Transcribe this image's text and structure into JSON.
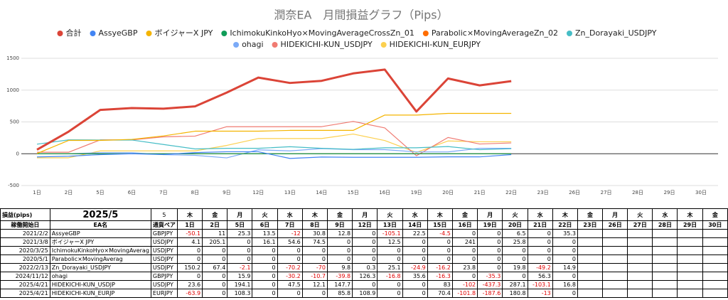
{
  "chart_data": {
    "type": "line",
    "title": "潤奈EA　月間損益グラフ（Pips）",
    "categories": [
      "1日",
      "2日",
      "5日",
      "6日",
      "7日",
      "8日",
      "9日",
      "12日",
      "13日",
      "14日",
      "15日",
      "16日",
      "19日",
      "20日",
      "21日",
      "22日",
      "23日",
      "26日",
      "27日",
      "28日",
      "29日",
      "30日"
    ],
    "ylim": [
      -500,
      1500
    ],
    "yticks": [
      -500,
      0,
      500,
      1000,
      1500
    ],
    "grid": true,
    "legend": "top",
    "series": [
      {
        "name": "合計",
        "color": "#db4437",
        "values": [
          63.9,
          347.4,
          688.9,
          718.5,
          708.2,
          744.9,
          961.2,
          1196.7,
          1112.4,
          1145.6,
          1262.0,
          1323.0,
          662.8,
          1182.8,
          1073.8,
          1140.8,
          null,
          null,
          null,
          null,
          null,
          null
        ]
      },
      {
        "name": "AssyeGBP",
        "color": "#4285f4",
        "values": [
          -50.1,
          -39.1,
          -13.8,
          -0.3,
          -12.3,
          18.5,
          31.3,
          31.3,
          -73.8,
          -51.3,
          -55.8,
          -55.8,
          -55.8,
          -49.3,
          -49.3,
          -14.0,
          null,
          null,
          null,
          null,
          null,
          null
        ]
      },
      {
        "name": "ボイジャーX JPY",
        "color": "#f4b400",
        "values": [
          4.1,
          209.2,
          209.2,
          225.3,
          279.9,
          354.4,
          354.4,
          354.4,
          366.9,
          366.9,
          366.9,
          607.9,
          607.9,
          633.7,
          633.7,
          633.7,
          null,
          null,
          null,
          null,
          null,
          null
        ]
      },
      {
        "name": "IchimokuKinkoHyo×MovingAverageCrossZn_01",
        "color": "#0f9d58",
        "values": [
          0,
          0,
          0,
          0,
          0,
          0,
          0,
          0,
          0,
          0,
          0,
          0,
          0,
          0,
          0,
          0,
          null,
          null,
          null,
          null,
          null,
          null
        ]
      },
      {
        "name": "Parabolic×MovingAverageZn_02",
        "color": "#ff6d01",
        "values": [
          0,
          0,
          0,
          0,
          0,
          0,
          0,
          0,
          0,
          0,
          0,
          0,
          0,
          0,
          0,
          0,
          null,
          null,
          null,
          null,
          null,
          null
        ]
      },
      {
        "name": "Zn_Dorayaki_USDJPY",
        "color": "#46bdc6",
        "values": [
          150.2,
          217.6,
          215.5,
          215.5,
          145.3,
          75.3,
          85.1,
          85.4,
          110.5,
          85.6,
          69.4,
          93.2,
          93.2,
          113.0,
          63.8,
          78.7,
          null,
          null,
          null,
          null,
          null,
          null
        ]
      },
      {
        "name": "ohagi",
        "color": "#7baaf7",
        "values": [
          0,
          0,
          15.9,
          15.9,
          -14.3,
          -25.0,
          -64.8,
          61.5,
          44.7,
          80.3,
          64.0,
          64.0,
          28.7,
          28.7,
          85.0,
          85.0,
          null,
          null,
          null,
          null,
          null,
          null
        ]
      },
      {
        "name": "HIDEKICHI-KUN_USDJPY",
        "color": "#f07b72",
        "values": [
          23.6,
          23.6,
          217.7,
          217.7,
          265.2,
          277.3,
          425.0,
          425.0,
          425.0,
          425.0,
          508.0,
          406.0,
          -31.3,
          255.8,
          152.7,
          169.5,
          null,
          null,
          null,
          null,
          null,
          null
        ]
      },
      {
        "name": "HIDEKICHI-KUN_EURJPY",
        "color": "#fcd04f",
        "values": [
          -63.9,
          -63.9,
          44.4,
          44.4,
          44.4,
          44.4,
          130.2,
          239.1,
          239.1,
          239.1,
          309.5,
          207.7,
          20.1,
          200.9,
          187.9,
          187.9,
          null,
          null,
          null,
          null,
          null,
          null
        ]
      }
    ]
  },
  "table": {
    "corner": "損益(pips)",
    "month": "2025/5",
    "selector": "5",
    "weekdays": [
      "木",
      "金",
      "月",
      "火",
      "水",
      "木",
      "金",
      "月",
      "火",
      "水",
      "木",
      "金",
      "月",
      "火",
      "水",
      "木",
      "金",
      "月",
      "火",
      "水",
      "木",
      "金"
    ],
    "columns": [
      "稼働開始日",
      "EA名",
      "通貨ペア"
    ],
    "days": [
      "1日",
      "2日",
      "5日",
      "6日",
      "7日",
      "8日",
      "9日",
      "12日",
      "13日",
      "14日",
      "15日",
      "16日",
      "19日",
      "20日",
      "21日",
      "22日",
      "23日",
      "26日",
      "27日",
      "28日",
      "29日",
      "30日"
    ],
    "rows": [
      {
        "start": "2021/2/2",
        "name": "AssyeGBP",
        "pair": "GBPJPY",
        "values": [
          -50.1,
          11,
          25.3,
          13.5,
          -12,
          30.8,
          12.8,
          0,
          -105.1,
          22.5,
          -4.5,
          0,
          0,
          6.5,
          0,
          35.3
        ]
      },
      {
        "start": "2021/3/8",
        "name": "ボイジャーX JPY",
        "pair": "USDJPY",
        "values": [
          4.1,
          205.1,
          0,
          16.1,
          54.6,
          74.5,
          0,
          0,
          12.5,
          0,
          0,
          241,
          0,
          25.8,
          0,
          0
        ]
      },
      {
        "start": "2020/3/25",
        "name": "IchimokuKinkoHyo×MovingAverag",
        "pair": "USDJPY",
        "values": [
          0,
          0,
          0,
          0,
          0,
          0,
          0,
          0,
          0,
          0,
          0,
          0,
          0,
          0,
          0,
          0
        ]
      },
      {
        "start": "2020/5/1",
        "name": "Parabolic×MovingAverag",
        "pair": "USDJPY",
        "values": [
          0,
          0,
          0,
          0,
          0,
          0,
          0,
          0,
          0,
          0,
          0,
          0,
          0,
          0,
          0,
          0
        ]
      },
      {
        "start": "2022/2/13",
        "name": "Zn_Dorayaki_USDJPY",
        "pair": "USDJPY",
        "values": [
          150.2,
          67.4,
          -2.1,
          0,
          -70.2,
          -70,
          9.8,
          0.3,
          25.1,
          -24.9,
          -16.2,
          23.8,
          0,
          19.8,
          -49.2,
          14.9
        ]
      },
      {
        "start": "2024/11/12",
        "name": "ohagi",
        "pair": "GBPJPY",
        "values": [
          0,
          0,
          15.9,
          0,
          -30.2,
          -10.7,
          -39.8,
          126.3,
          -16.8,
          35.6,
          -16.3,
          0,
          -35.3,
          0,
          56.3,
          0
        ]
      },
      {
        "start": "2025/4/21",
        "name": "HIDEKICHI-KUN_USDJP",
        "pair": "USDJPY",
        "values": [
          23.6,
          0,
          194.1,
          0,
          47.5,
          12.1,
          147.7,
          0,
          0,
          0,
          83,
          -102,
          -437.3,
          287.1,
          -103.1,
          16.8
        ]
      },
      {
        "start": "2025/4/21",
        "name": "HIDEKICHI-KUN_EURJP",
        "pair": "EURJPY",
        "values": [
          -63.9,
          0,
          108.3,
          0,
          0,
          0,
          85.8,
          108.9,
          0,
          0,
          70.4,
          -101.8,
          -187.6,
          180.8,
          -13,
          0
        ]
      }
    ]
  }
}
